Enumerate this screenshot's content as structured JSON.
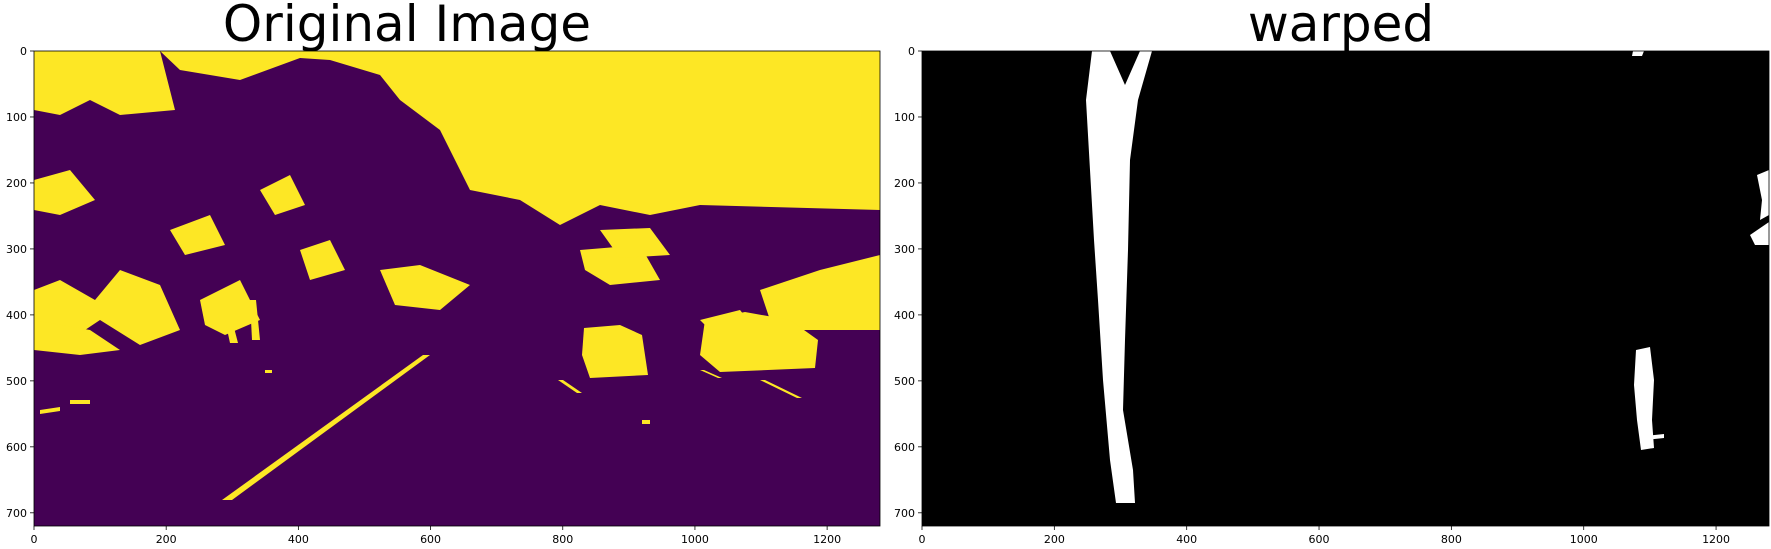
{
  "panels": [
    {
      "title": "Original Image",
      "kind": "binary-viridis",
      "colors": {
        "background": "#440154",
        "foreground": "#fde725"
      },
      "xlim": [
        0,
        1280
      ],
      "ylim": [
        720,
        0
      ],
      "xticks": [
        "0",
        "200",
        "400",
        "600",
        "800",
        "1000",
        "1200"
      ],
      "yticks": [
        "0",
        "100",
        "200",
        "300",
        "400",
        "500",
        "600",
        "700"
      ]
    },
    {
      "title": "warped",
      "kind": "binary-gray",
      "colors": {
        "background": "#000000",
        "foreground": "#ffffff"
      },
      "xlim": [
        0,
        1280
      ],
      "ylim": [
        720,
        0
      ],
      "xticks": [
        "0",
        "200",
        "400",
        "600",
        "800",
        "1000",
        "1200"
      ],
      "yticks": [
        "0",
        "100",
        "200",
        "300",
        "400",
        "500",
        "600",
        "700"
      ]
    }
  ]
}
